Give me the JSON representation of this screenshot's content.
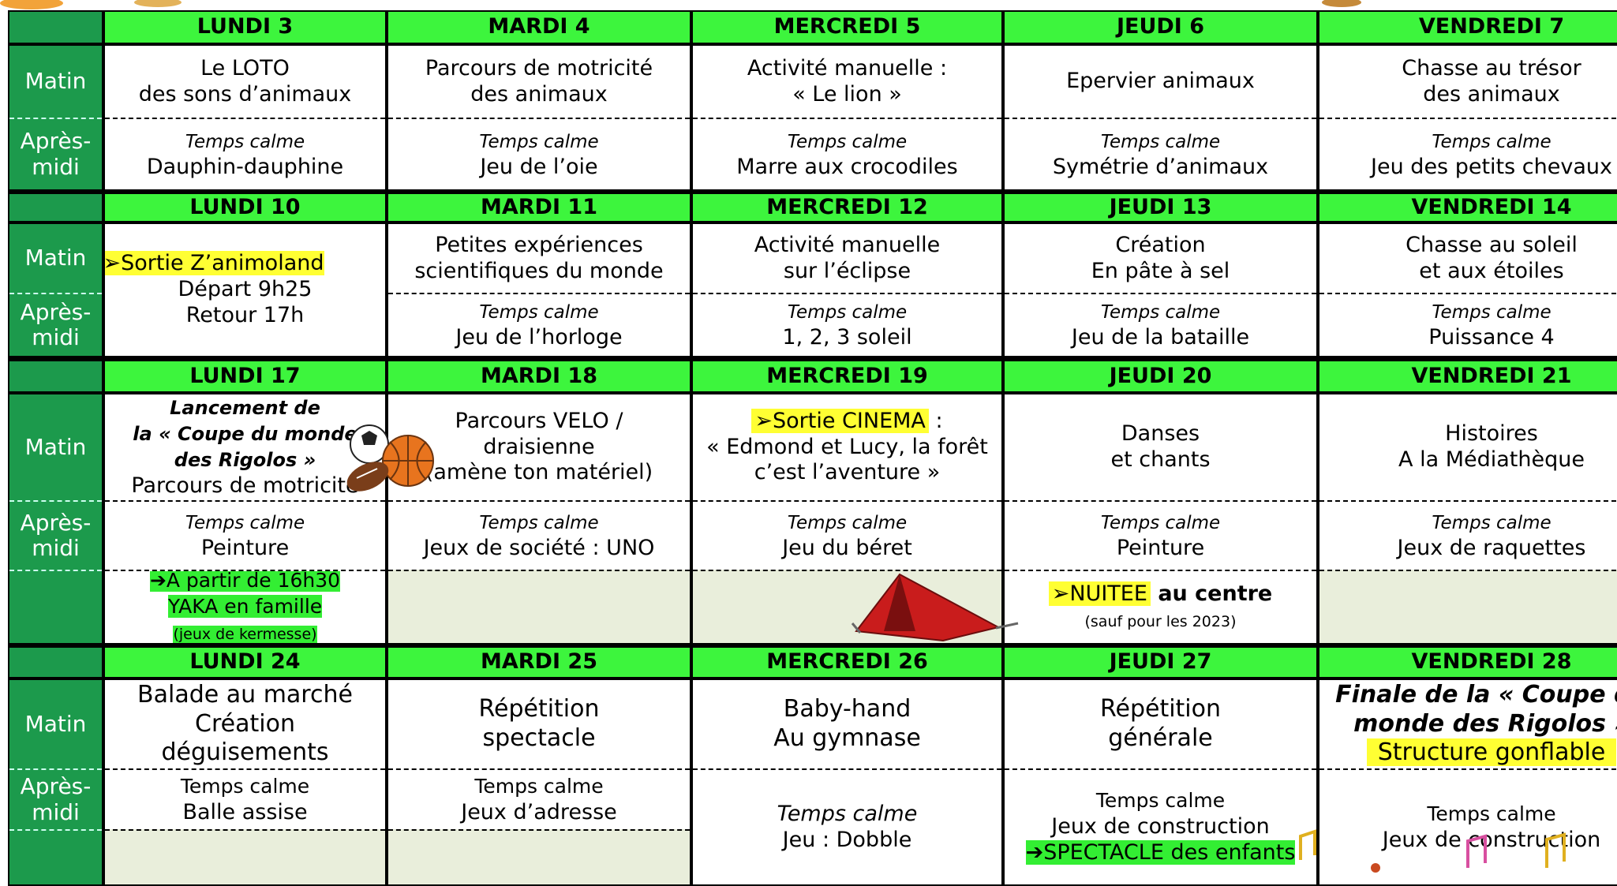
{
  "row_labels": [
    "Matin",
    "Après-midi"
  ],
  "weeks": [
    {
      "days": [
        {
          "header": "LUNDI 3",
          "matin": [
            "Le LOTO",
            "des sons d’animaux"
          ],
          "apres": [
            "Temps calme",
            "Dauphin-dauphine"
          ]
        },
        {
          "header": "MARDI 4",
          "matin": [
            "Parcours de motricité",
            "des animaux"
          ],
          "apres": [
            "Temps calme",
            "Jeu de l’oie"
          ]
        },
        {
          "header": "MERCREDI 5",
          "matin": [
            "Activité manuelle  :",
            "«  Le lion  »"
          ],
          "apres": [
            "Temps calme",
            "Marre aux crocodiles"
          ]
        },
        {
          "header": "JEUDI 6",
          "matin": [
            "Epervier animaux"
          ],
          "apres": [
            "Temps calme",
            "Symétrie d’animaux"
          ]
        },
        {
          "header": "VENDREDI 7",
          "matin": [
            "Chasse au trésor",
            "des animaux"
          ],
          "apres": [
            "Temps calme",
            "Jeu des petits chevaux"
          ]
        }
      ]
    },
    {
      "days": [
        {
          "header": "LUNDI 10",
          "matin": [
            "➢Sortie Z’animoland",
            "Départ 9h25",
            "Retour 17h"
          ]
        },
        {
          "header": "MARDI 11",
          "matin": [
            "Petites expériences",
            "scientifiques du monde"
          ],
          "apres": [
            "Temps calme",
            "Jeu de l’horloge"
          ]
        },
        {
          "header": "MERCREDI 12",
          "matin": [
            "Activité manuelle",
            "sur l’éclipse"
          ],
          "apres": [
            "Temps calme",
            "1, 2, 3 soleil"
          ]
        },
        {
          "header": "JEUDI 13",
          "matin": [
            "Création",
            "En pâte à sel"
          ],
          "apres": [
            "Temps calme",
            "Jeu de la bataille"
          ]
        },
        {
          "header": "VENDREDI 14",
          "matin": [
            "Chasse au soleil",
            "et aux étoiles"
          ],
          "apres": [
            "Temps calme",
            "Puissance 4"
          ]
        }
      ]
    },
    {
      "days": [
        {
          "header": "LUNDI 17",
          "matin": [
            "Lancement de",
            "la «  Coupe du monde",
            "des Rigolos  »",
            "Parcours de motricité"
          ],
          "apres": [
            "Temps calme",
            "Peinture"
          ],
          "extra": [
            "➔A partir de 16h30",
            "YAKA en famille",
            "(jeux de kermesse)"
          ]
        },
        {
          "header": "MARDI 18",
          "matin": [
            "Parcours VELO /",
            "draisienne",
            "(amène ton matériel)"
          ],
          "apres": [
            "Temps calme",
            "Jeux de société  : UNO"
          ],
          "extra": []
        },
        {
          "header": "MERCREDI 19",
          "matin": [
            [
              "➢Sortie CINEMA",
              "  :"
            ],
            "«  Edmond et Lucy, la forêt",
            "c’est l’aventure  »"
          ],
          "apres": [
            "Temps calme",
            "Jeu du béret"
          ],
          "extra": []
        },
        {
          "header": "JEUDI 20",
          "matin": [
            "Danses",
            "et chants"
          ],
          "apres": [
            "Temps calme",
            "Peinture"
          ],
          "extra": [
            [
              "➢NUITEE",
              " au centre"
            ],
            "(sauf pour les 2023)"
          ]
        },
        {
          "header": "VENDREDI 21",
          "matin": [
            "Histoires",
            "A la Médiathèque"
          ],
          "apres": [
            "Temps calme",
            "Jeux de raquettes"
          ],
          "extra": []
        }
      ]
    },
    {
      "days": [
        {
          "header": "LUNDI 24",
          "matin": [
            "Balade au marché",
            "Création",
            "déguisements"
          ],
          "apres": [
            "Temps calme",
            "Balle assise"
          ],
          "extra": []
        },
        {
          "header": "MARDI 25",
          "matin": [
            "Répétition",
            "spectacle"
          ],
          "apres": [
            "Temps calme",
            "Jeux d’adresse"
          ],
          "extra": []
        },
        {
          "header": "MERCREDI 26",
          "matin": [
            "Baby-hand",
            "Au gymnase"
          ],
          "apres": [
            "Temps calme",
            "Jeu  : Dobble"
          ]
        },
        {
          "header": "JEUDI 27",
          "matin": [
            "Répétition",
            "générale"
          ],
          "apres": [
            "Temps calme",
            "Jeux de construction",
            "➔SPECTACLE des enfants"
          ]
        },
        {
          "header": "VENDREDI 28",
          "matin": [
            "Finale de la «  Coupe du",
            "monde des Rigolos  »",
            "Structure gonflable"
          ],
          "apres": [
            "Temps calme",
            "Jeux de construction"
          ]
        }
      ]
    }
  ]
}
